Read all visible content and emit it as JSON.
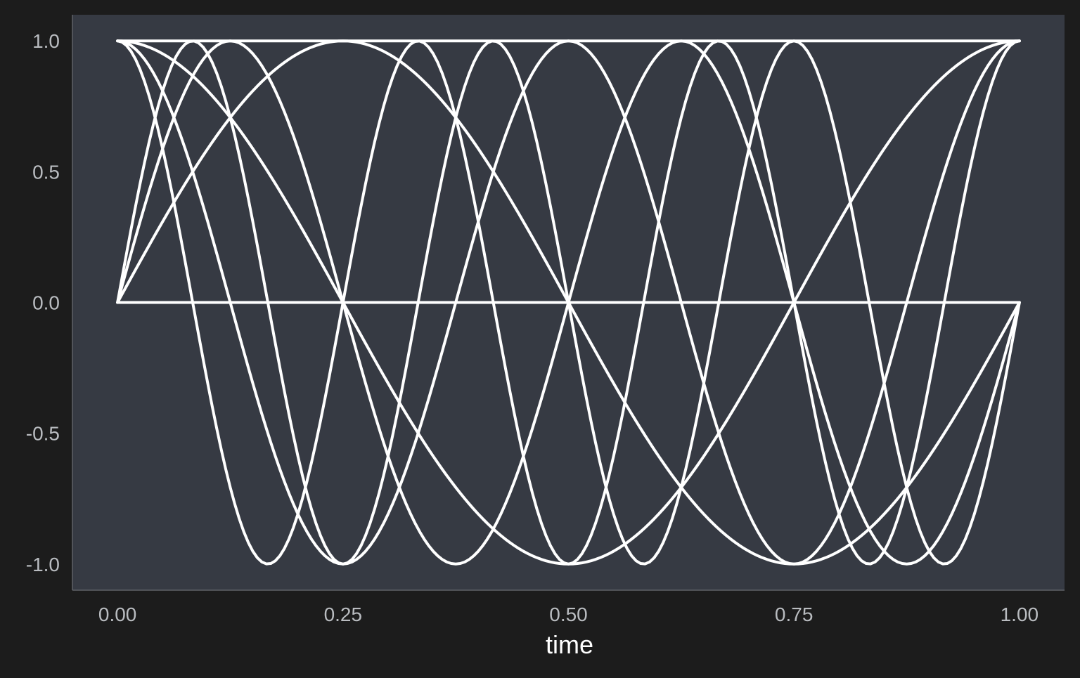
{
  "chart_data": {
    "type": "line",
    "xlabel": "time",
    "ylabel": "",
    "xlim": [
      -0.05,
      1.05
    ],
    "ylim": [
      -1.1,
      1.1
    ],
    "x_ticks": [
      0.0,
      0.25,
      0.5,
      0.75,
      1.0
    ],
    "x_tick_labels": [
      "0.00",
      "0.25",
      "0.50",
      "0.75",
      "1.00"
    ],
    "y_ticks": [
      1.0,
      0.5,
      0.0,
      -0.5,
      -1.0
    ],
    "y_tick_labels": [
      "1.0",
      "0.5",
      "0.0",
      "-0.5",
      "-1.0"
    ],
    "grid": false,
    "legend": "none",
    "colors": {
      "page_background": "#1c1c1c",
      "plot_background": "#363a43",
      "axis_line": "#5e6167",
      "line": "#ffffff",
      "tick_label": "#b9bcc0",
      "axis_title": "#ffffff"
    },
    "series": [
      {
        "function": "sin",
        "frequency": 0
      },
      {
        "function": "sin",
        "frequency": 1
      },
      {
        "function": "sin",
        "frequency": 2
      },
      {
        "function": "sin",
        "frequency": 3
      },
      {
        "function": "cos",
        "frequency": 0
      },
      {
        "function": "cos",
        "frequency": 1
      },
      {
        "function": "cos",
        "frequency": 2
      },
      {
        "function": "cos",
        "frequency": 3
      }
    ],
    "samples_per_series": 201
  }
}
